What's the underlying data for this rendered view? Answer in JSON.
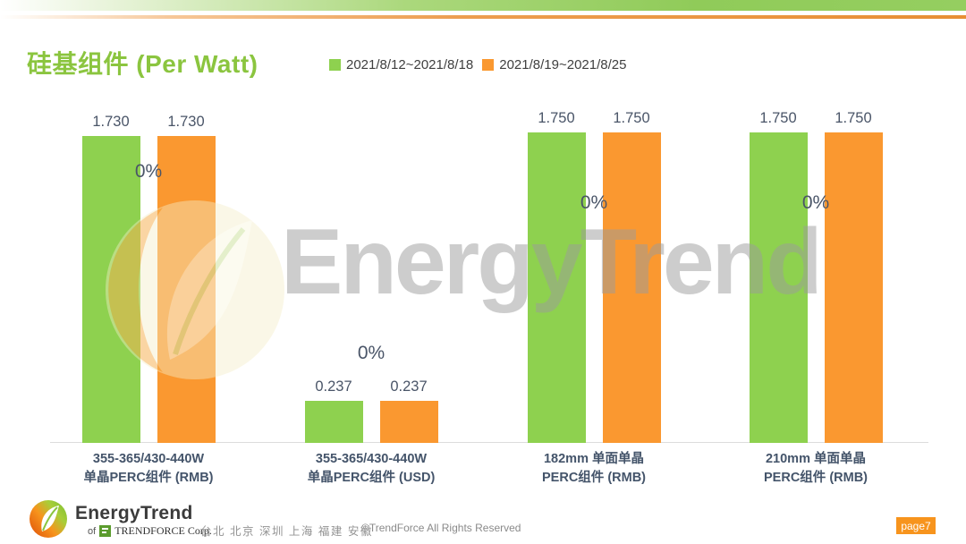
{
  "colors": {
    "brand_green": "#8BC53F",
    "brand_orange": "#F7941D",
    "bar_green": "#8ED14F",
    "bar_orange": "#FA9830",
    "label_dark": "#44546A"
  },
  "header": {
    "title": "硅基组件 (Per Watt)"
  },
  "chart_data": {
    "type": "bar",
    "title": "硅基组件 (Per Watt)",
    "categories": [
      {
        "lines": [
          "355-365/430-440W",
          "单晶PERC组件 (RMB)"
        ]
      },
      {
        "lines": [
          "355-365/430-440W",
          "单晶PERC组件 (USD)"
        ]
      },
      {
        "lines": [
          "182mm 单面单晶",
          "PERC组件 (RMB)"
        ]
      },
      {
        "lines": [
          "210mm 单面单晶",
          "PERC组件 (RMB)"
        ]
      }
    ],
    "series": [
      {
        "name": "2021/8/12~2021/8/18",
        "color": "#8ED14F",
        "values": [
          1.73,
          0.237,
          1.75,
          1.75
        ],
        "labels": [
          "1.730",
          "0.237",
          "1.750",
          "1.750"
        ]
      },
      {
        "name": "2021/8/19~2021/8/25",
        "color": "#FA9830",
        "values": [
          1.73,
          0.237,
          1.75,
          1.75
        ],
        "labels": [
          "1.730",
          "0.237",
          "1.750",
          "1.750"
        ]
      }
    ],
    "change_pct": [
      "0%",
      "0%",
      "0%",
      "0%"
    ],
    "ylim": [
      0,
      1.9
    ],
    "grid": false,
    "legend_position": "top"
  },
  "watermark": {
    "text": "EnergyTrend"
  },
  "footer": {
    "brand": "EnergyTrend",
    "brand_sub_prefix": "of",
    "brand_sub": "TRENDFORCE Corp.",
    "locations": "台北 北京 深圳 上海 福建 安徽",
    "copyright": "©TrendForce All Rights Reserved",
    "page": "page7"
  }
}
